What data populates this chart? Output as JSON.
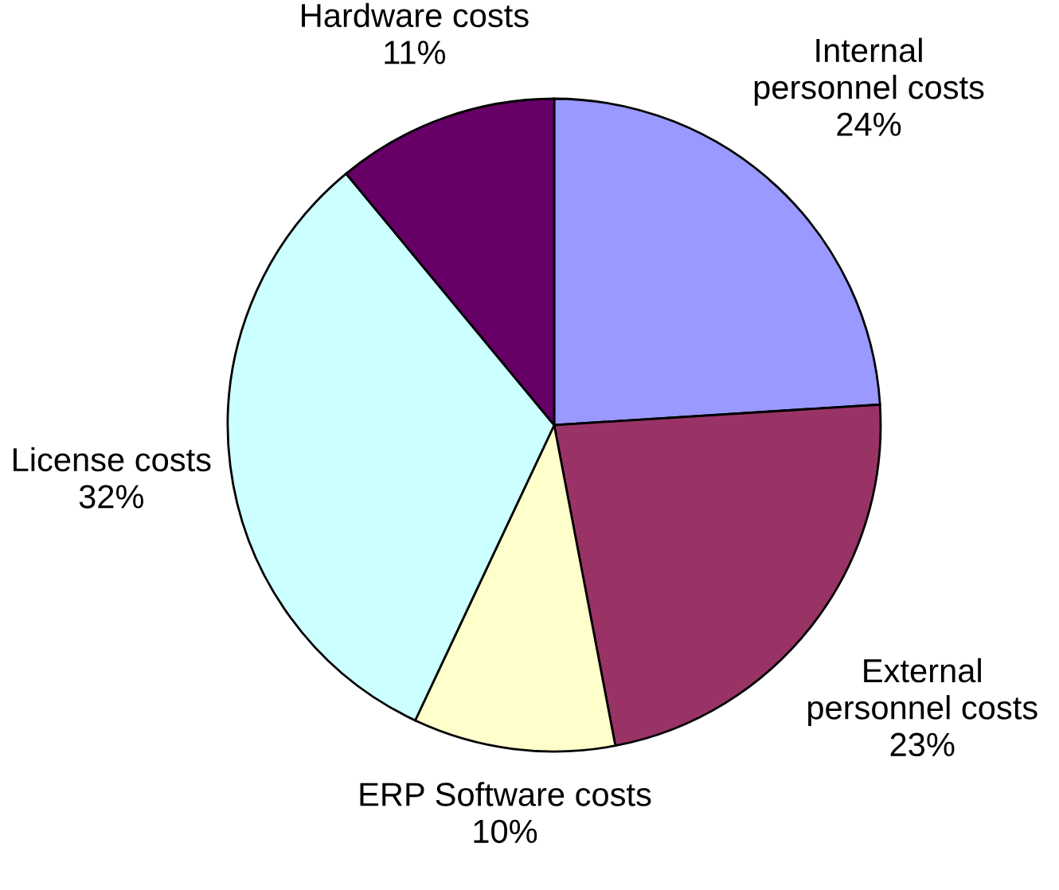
{
  "chart_data": {
    "type": "pie",
    "categories": [
      "Internal\npersonnel costs",
      "External\npersonnel costs",
      "ERP Software costs",
      "License costs",
      "Hardware costs"
    ],
    "values": [
      24,
      23,
      10,
      32,
      11
    ],
    "value_labels": [
      "24%",
      "23%",
      "10%",
      "32%",
      "11%"
    ],
    "colors": [
      "#9999ff",
      "#993366",
      "#ffffcc",
      "#ccffff",
      "#660066"
    ]
  }
}
